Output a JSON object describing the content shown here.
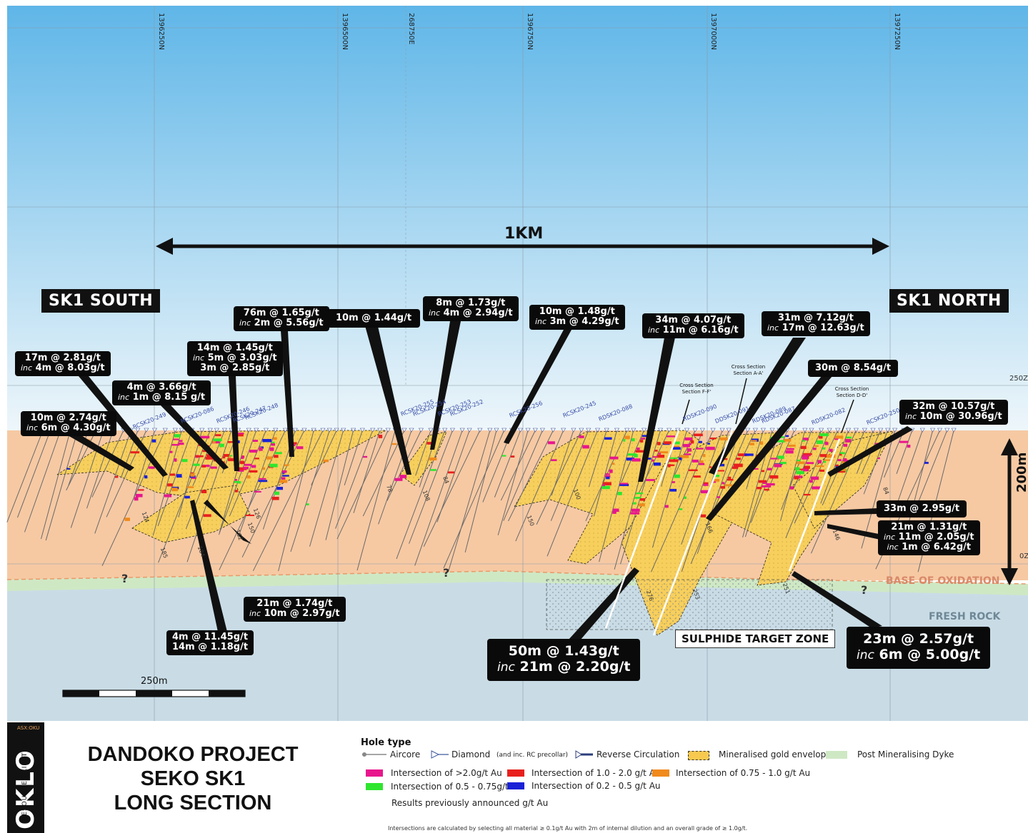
{
  "coordinates": [
    "1396250N",
    "1396500N",
    "268750E",
    "1396750N",
    "1397000N",
    "1397250N"
  ],
  "elevations": [
    "250Z",
    "0Z"
  ],
  "scale_1km": "1KM",
  "scale_bar": "250m",
  "vertical_scale": "200m",
  "section_names": {
    "south": "SK1 SOUTH",
    "north": "SK1 NORTH"
  },
  "zones": {
    "base_oxidation": "BASE OF OXIDATION",
    "fresh_rock": "FRESH ROCK",
    "sulphide": "SULPHIDE TARGET ZONE"
  },
  "cross_sections": [
    "Cross Section Section F-F'",
    "Cross Section Section A-A'",
    "Cross Section Section D-D'"
  ],
  "intercepts": [
    {
      "l1": "17m @ 2.81g/t",
      "l2": "4m @ 8.03g/t",
      "inc": "inc"
    },
    {
      "l1": "10m @ 2.74g/t",
      "l2": "6m @ 4.30g/t",
      "inc": "inc"
    },
    {
      "l1": "4m @ 3.66g/t",
      "l2": "1m @ 8.15 g/t",
      "inc": "inc"
    },
    {
      "l1": "14m @ 1.45g/t",
      "l2": "5m @ 3.03g/t",
      "l3": "3m @ 2.85g/t",
      "inc": "inc"
    },
    {
      "l1": "76m @ 1.65g/t",
      "l2": "2m @ 5.56g/t",
      "inc": "inc"
    },
    {
      "l1": "10m @ 1.44g/t"
    },
    {
      "l1": "8m @ 1.73g/t",
      "l2": "4m @ 2.94g/t",
      "inc": "inc"
    },
    {
      "l1": "10m @ 1.48g/t",
      "l2": "3m @ 4.29g/t",
      "inc": "inc"
    },
    {
      "l1": "34m @ 4.07g/t",
      "l2": "11m @ 6.16g/t",
      "inc": "inc"
    },
    {
      "l1": "31m @ 7.12g/t",
      "l2": "17m @ 12.63g/t",
      "inc": "inc"
    },
    {
      "l1": "30m @ 8.54g/t"
    },
    {
      "l1": "32m @ 10.57g/t",
      "l2": "10m @ 30.96g/t",
      "inc": "inc"
    },
    {
      "l1": "33m @ 2.95g/t"
    },
    {
      "l1": "21m @ 1.31g/t",
      "l2": "11m @ 2.05g/t",
      "l3": "1m @ 6.42g/t",
      "inc": "inc"
    },
    {
      "l1": "21m @ 1.74g/t",
      "l2": "10m @ 2.97g/t",
      "inc": "inc"
    },
    {
      "l1": "4m @ 11.45g/t",
      "l2": "14m @ 1.18g/t"
    },
    {
      "l1": "50m @ 1.43g/t",
      "l2": "21m @ 2.20g/t",
      "inc": "inc"
    },
    {
      "l1": "23m @ 2.57g/t",
      "l2": "6m @ 5.00g/t",
      "inc": "inc"
    }
  ],
  "hole_ids": [
    "RCSK20-249",
    "RCSK20-086",
    "RCSK20-246",
    "RCSK20-247",
    "RCSK20-248",
    "RCSK20-255",
    "RCSK20-254",
    "RCSK20-253",
    "RCSK20-252",
    "RCSK20-256",
    "RCSK20-245",
    "RDSK20-088",
    "RDSK20-090",
    "DDSK20-091",
    "RDSK20-089",
    "RDSK20-087",
    "RDSK20-082",
    "RCSK20-250"
  ],
  "depths": [
    "124",
    "185",
    "184",
    "162",
    "150",
    "126",
    "78",
    "108",
    "84",
    "150",
    "100",
    "276",
    "253",
    "251",
    "146",
    "84",
    "166"
  ],
  "title": [
    "DANDOKO PROJECT",
    "SEKO SK1",
    "LONG SECTION"
  ],
  "logo": {
    "ask": "ASX:OKU",
    "name": "OKLO",
    "sub": "RESOURCES LIMITED"
  },
  "legend": {
    "hole_type": "Hole type",
    "aircore": "Aircore",
    "diamond": "Diamond",
    "diamond_note": "(and inc. RC precollar)",
    "rc": "Reverse Circulation",
    "envelope": "Mineralised gold envelope",
    "dyke": "Post Mineralising Dyke",
    "i_gt2": "Intersection of >2.0g/t Au",
    "i_1_2": "Intersection of 1.0 - 2.0 g/t Au",
    "i_075_1": "Intersection of 0.75 - 1.0 g/t Au",
    "i_05_075": "Intersection of 0.5 - 0.75g/t Au",
    "i_02_05": "Intersection of 0.2 - 0.5 g/t Au",
    "prev": "Results previously announced g/t Au",
    "footnote": "Intersections are calculated by selecting all material ≥ 0.1g/t Au with 2m of internal dilution and an overall grade of ≥ 1.0g/t."
  },
  "colors": {
    "sky_top": "#5fb6e8",
    "sky_bottom": "#e9f3f8",
    "oxide": "#f6c9a3",
    "fresh": "#c9dce6",
    "dyke": "#cfe8c4",
    "envelope": "#f7c94f",
    "gt2": "#e8168d",
    "i1_2": "#e8201d",
    "i075_1": "#f08a1c",
    "i05_075": "#2ee62e",
    "i02_05": "#1a22d6"
  }
}
